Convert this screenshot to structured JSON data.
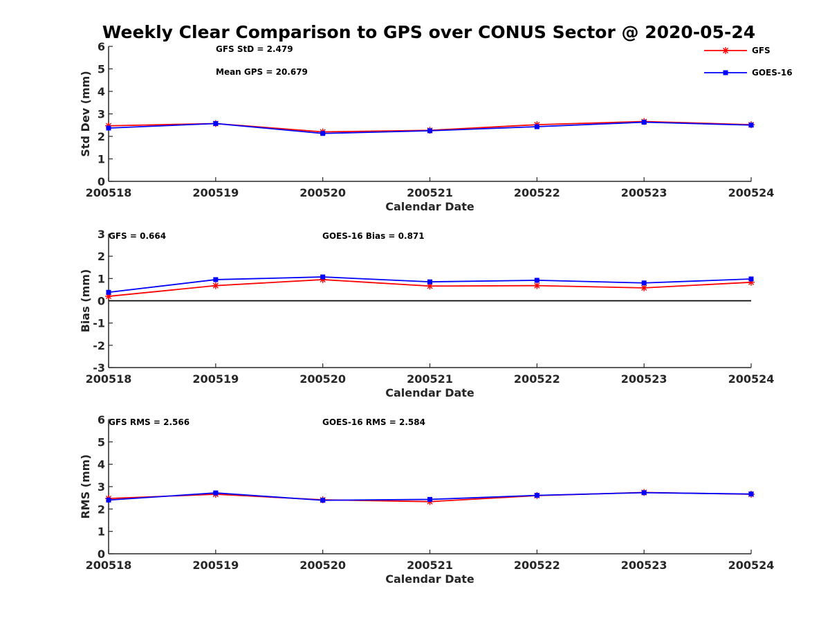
{
  "title": "Weekly Clear Comparison to GPS over CONUS Sector @ 2020-05-24",
  "legend": {
    "placement": "top-right",
    "items": [
      {
        "label": "GFS",
        "color": "#ff0000",
        "marker": "asterisk"
      },
      {
        "label": "GOES-16",
        "color": "#0000ff",
        "marker": "square"
      }
    ]
  },
  "chart_data": [
    {
      "type": "line",
      "ylabel": "Std Dev (mm)",
      "xlabel": "Calendar Date",
      "categories": [
        "200518",
        "200519",
        "200520",
        "200521",
        "200522",
        "200523",
        "200524"
      ],
      "ylim": [
        0,
        6
      ],
      "yticks": [
        "0",
        "1",
        "2",
        "3",
        "4",
        "5",
        "6"
      ],
      "annotations": [
        "GFS StD = 2.479",
        "Mean GPS = 20.679"
      ],
      "series": [
        {
          "name": "GFS",
          "color": "#ff0000",
          "values": [
            2.47,
            2.57,
            2.2,
            2.27,
            2.52,
            2.66,
            2.52
          ]
        },
        {
          "name": "GOES-16",
          "color": "#0000ff",
          "values": [
            2.37,
            2.57,
            2.13,
            2.25,
            2.43,
            2.63,
            2.5
          ]
        }
      ]
    },
    {
      "type": "line",
      "ylabel": "Bias (mm)",
      "xlabel": "Calendar Date",
      "categories": [
        "200518",
        "200519",
        "200520",
        "200521",
        "200522",
        "200523",
        "200524"
      ],
      "ylim": [
        -3,
        3
      ],
      "yticks": [
        "-3",
        "-2",
        "-1",
        "0",
        "1",
        "2",
        "3"
      ],
      "zero_line": true,
      "annotations": [
        "GFS = 0.664",
        "GOES-16 Bias  = 0.871"
      ],
      "series": [
        {
          "name": "GFS",
          "color": "#ff0000",
          "values": [
            0.2,
            0.68,
            0.95,
            0.66,
            0.68,
            0.58,
            0.83
          ]
        },
        {
          "name": "GOES-16",
          "color": "#0000ff",
          "values": [
            0.38,
            0.95,
            1.07,
            0.85,
            0.92,
            0.8,
            0.98
          ]
        }
      ]
    },
    {
      "type": "line",
      "ylabel": "RMS (mm)",
      "xlabel": "Calendar Date",
      "categories": [
        "200518",
        "200519",
        "200520",
        "200521",
        "200522",
        "200523",
        "200524"
      ],
      "ylim": [
        0,
        6
      ],
      "yticks": [
        "0",
        "1",
        "2",
        "3",
        "4",
        "5",
        "6"
      ],
      "annotations": [
        "GFS RMS = 2.566",
        "GOES-16 RMS = 2.584"
      ],
      "series": [
        {
          "name": "GFS",
          "color": "#ff0000",
          "values": [
            2.47,
            2.66,
            2.41,
            2.33,
            2.6,
            2.74,
            2.66
          ]
        },
        {
          "name": "GOES-16",
          "color": "#0000ff",
          "values": [
            2.4,
            2.72,
            2.39,
            2.43,
            2.61,
            2.73,
            2.67
          ]
        }
      ]
    }
  ]
}
